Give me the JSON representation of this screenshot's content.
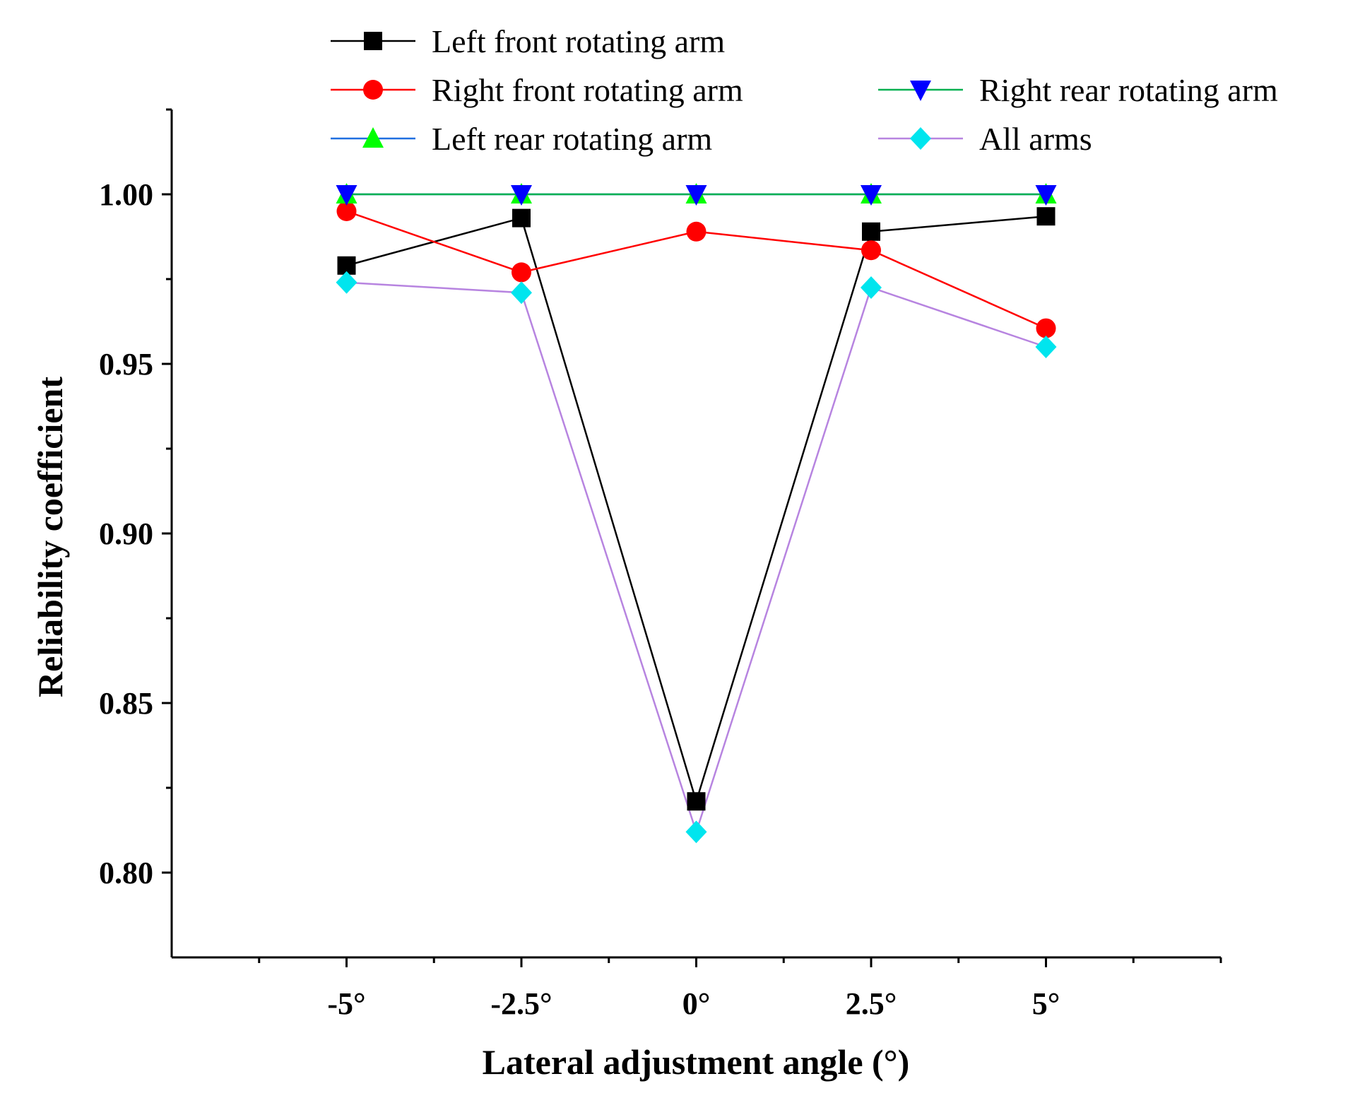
{
  "chart_data": {
    "type": "line",
    "title": "",
    "xlabel": "Lateral adjustment angle (°)",
    "ylabel": "Reliability coefficient",
    "categories": [
      "-5°",
      "-2.5°",
      "0°",
      "2.5°",
      "5°"
    ],
    "x": [
      -5,
      -2.5,
      0,
      2.5,
      5
    ],
    "xlim": [
      -7.5,
      7.5
    ],
    "ylim": [
      0.775,
      1.025
    ],
    "yticks": [
      0.8,
      0.85,
      0.9,
      0.95,
      1.0
    ],
    "ytick_labels": [
      "0.80",
      "0.85",
      "0.90",
      "0.95",
      "1.00"
    ],
    "grid": false,
    "legend_position": "top",
    "series": [
      {
        "name": "Left front rotating arm",
        "color": "#000000",
        "line_color": "#000000",
        "marker": "square",
        "values": [
          0.979,
          0.993,
          0.821,
          0.989,
          0.9935
        ]
      },
      {
        "name": "Right front rotating arm",
        "color": "#ff0000",
        "line_color": "#ff0000",
        "marker": "circle",
        "values": [
          0.995,
          0.977,
          0.989,
          0.9835,
          0.9605
        ]
      },
      {
        "name": "Left rear rotating arm",
        "color": "#00ff00",
        "line_color": "#1f6fe0",
        "marker": "triangle-up",
        "values": [
          1.0,
          1.0,
          1.0,
          1.0,
          1.0
        ]
      },
      {
        "name": "Right rear rotating arm",
        "color": "#0000ff",
        "line_color": "#00b050",
        "marker": "triangle-down",
        "values": [
          1.0,
          1.0,
          1.0,
          1.0,
          1.0
        ]
      },
      {
        "name": "All arms",
        "color": "#00e5ee",
        "line_color": "#b784e0",
        "marker": "diamond",
        "values": [
          0.974,
          0.971,
          0.812,
          0.9725,
          0.955
        ]
      }
    ]
  }
}
